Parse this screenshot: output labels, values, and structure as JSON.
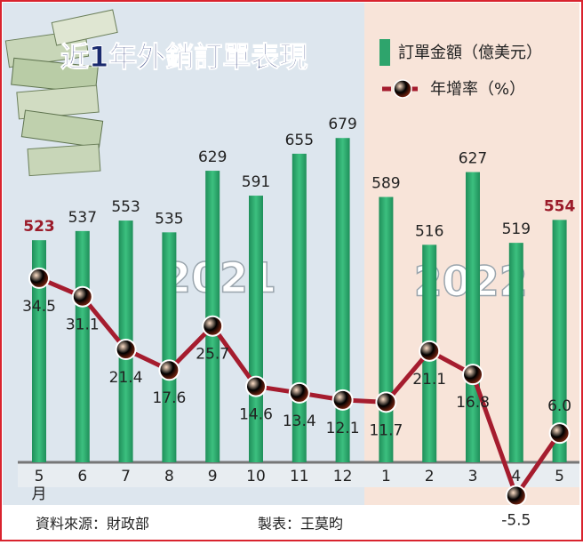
{
  "chart_data": {
    "type": "combo",
    "title": "近1年外銷訂單表現",
    "categories": [
      "5",
      "6",
      "7",
      "8",
      "9",
      "10",
      "11",
      "12",
      "1",
      "2",
      "3",
      "4",
      "5"
    ],
    "x_unit": "月",
    "year_labels": [
      "2021",
      "2022"
    ],
    "series": [
      {
        "name": "訂單金額（億美元）",
        "color": "#2ea46c",
        "values": [
          523,
          537,
          553,
          535,
          629,
          591,
          655,
          679,
          589,
          516,
          627,
          519,
          554
        ],
        "value_label_colors": [
          "#9b1b2a",
          "#222222",
          "#222222",
          "#222222",
          "#222222",
          "#222222",
          "#222222",
          "#222222",
          "#222222",
          "#222222",
          "#222222",
          "#222222",
          "#9b1b2a"
        ]
      },
      {
        "name": "年增率（%）",
        "axis": "y2",
        "color": "#a51c2e",
        "marker_color": "#e2633c",
        "negative_marker_color": "#6cc76e",
        "values": [
          34.5,
          31.1,
          21.4,
          17.6,
          25.7,
          14.6,
          13.4,
          12.1,
          11.7,
          21.1,
          16.8,
          -5.5,
          6.0
        ],
        "value_labels": [
          "34.5",
          "31.1",
          "21.4",
          "17.6",
          "25.7",
          "14.6",
          "13.4",
          "12.1",
          "11.7",
          "21.1",
          "16.8",
          "-5.5",
          "6.0"
        ]
      }
    ],
    "ylim": [
      184,
      720
    ],
    "y2lim": [
      -10,
      60
    ],
    "source": "資料來源：財政部",
    "credit": "製表：王莫昀"
  }
}
